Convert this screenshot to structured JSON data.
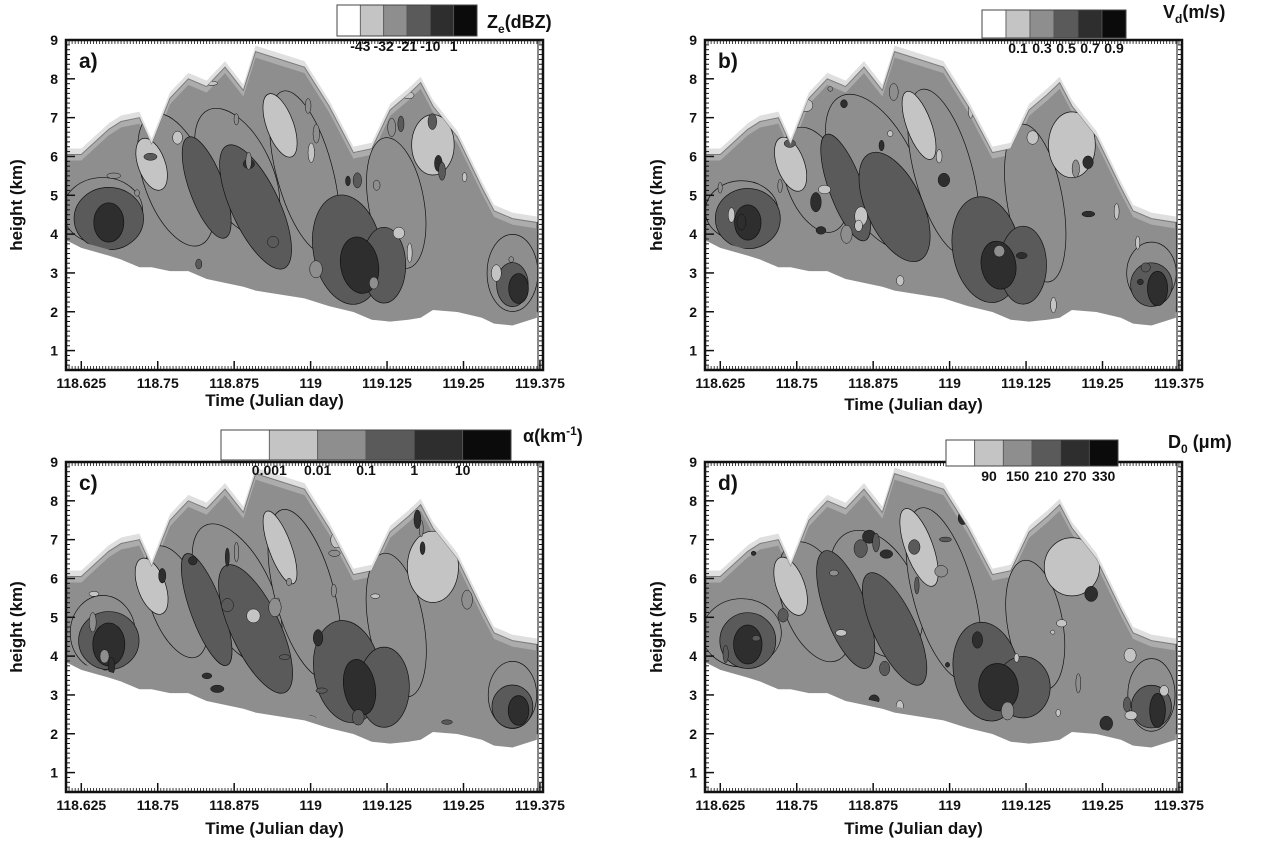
{
  "chart_data": [
    {
      "type": "heatmap",
      "panel_label": "a)",
      "xlabel": "Time (Julian day)",
      "ylabel": "height (km)",
      "xlim": [
        118.6,
        119.38
      ],
      "ylim": [
        0.5,
        9
      ],
      "xticks": [
        118.625,
        118.75,
        118.875,
        119,
        119.125,
        119.25,
        119.375
      ],
      "xtick_labels": [
        "118.625",
        "118.75",
        "118.875",
        "119",
        "119.125",
        "119.25",
        "119.375"
      ],
      "yticks": [
        1,
        2,
        3,
        4,
        5,
        6,
        7,
        8,
        9
      ],
      "colorbar": {
        "title_main": "Z",
        "title_sub": "e",
        "title_rest": "(dBZ)",
        "levels": [
          -43,
          -32,
          -21,
          -10,
          1
        ],
        "level_labels": [
          "-43",
          "-32",
          "-21",
          "-10",
          "1"
        ],
        "label_style": "boundary",
        "colors": [
          "#ffffff",
          "#c4c4c4",
          "#8e8e8e",
          "#5a5a5a",
          "#2e2e2e",
          "#0b0b0b"
        ]
      },
      "echo_envelope": {
        "x": [
          118.6,
          118.625,
          118.67,
          118.69,
          118.72,
          118.74,
          118.77,
          118.8,
          118.83,
          118.86,
          118.89,
          118.91,
          118.95,
          118.99,
          119.03,
          119.07,
          119.1,
          119.13,
          119.16,
          119.18,
          119.2,
          119.24,
          119.28,
          119.3,
          119.33,
          119.37
        ],
        "top": [
          6.05,
          6.05,
          6.7,
          6.9,
          7.0,
          6.3,
          7.5,
          8.0,
          7.8,
          8.3,
          7.7,
          8.7,
          8.5,
          8.3,
          7.3,
          6.1,
          6.2,
          7.2,
          7.6,
          7.9,
          7.3,
          6.5,
          5.2,
          4.6,
          4.4,
          4.3
        ],
        "bottom": [
          4.0,
          3.8,
          3.6,
          3.5,
          3.3,
          3.3,
          3.2,
          3.2,
          3.0,
          2.9,
          2.8,
          2.7,
          2.6,
          2.5,
          2.3,
          2.15,
          1.95,
          1.9,
          1.95,
          2.0,
          2.2,
          2.15,
          2.0,
          1.85,
          1.8,
          2.0
        ]
      }
    },
    {
      "type": "heatmap",
      "panel_label": "b)",
      "xlabel": "Time (Julian day)",
      "ylabel": "height (km)",
      "xlim": [
        118.6,
        119.38
      ],
      "ylim": [
        0.5,
        9
      ],
      "xticks": [
        118.625,
        118.75,
        118.875,
        119,
        119.125,
        119.25,
        119.375
      ],
      "xtick_labels": [
        "118.625",
        "118.75",
        "118.875",
        "119",
        "119.125",
        "119.25",
        "119.375"
      ],
      "yticks": [
        1,
        2,
        3,
        4,
        5,
        6,
        7,
        8,
        9
      ],
      "colorbar": {
        "title_main": "V",
        "title_sub": "d",
        "title_rest": "(m/s)",
        "levels": [
          0.1,
          0.3,
          0.5,
          0.7,
          0.9
        ],
        "level_labels": [
          "0.1",
          "0.3",
          "0.5",
          "0.7",
          "0.9"
        ],
        "label_style": "center",
        "colors": [
          "#ffffff",
          "#c4c4c4",
          "#8e8e8e",
          "#5a5a5a",
          "#2e2e2e",
          "#0b0b0b"
        ]
      },
      "echo_envelope": {
        "x": [
          118.6,
          118.625,
          118.67,
          118.69,
          118.72,
          118.74,
          118.77,
          118.8,
          118.83,
          118.86,
          118.89,
          118.91,
          118.95,
          118.99,
          119.03,
          119.07,
          119.1,
          119.13,
          119.16,
          119.18,
          119.2,
          119.24,
          119.28,
          119.3,
          119.33,
          119.37
        ],
        "top": [
          6.05,
          6.05,
          6.7,
          6.9,
          7.0,
          6.3,
          7.5,
          8.0,
          7.8,
          8.3,
          7.7,
          8.7,
          8.5,
          8.3,
          7.3,
          6.1,
          6.2,
          7.2,
          7.6,
          7.9,
          7.3,
          6.5,
          5.2,
          4.6,
          4.4,
          4.3
        ],
        "bottom": [
          4.0,
          3.8,
          3.6,
          3.5,
          3.3,
          3.3,
          3.2,
          3.2,
          3.0,
          2.9,
          2.8,
          2.7,
          2.6,
          2.5,
          2.3,
          2.15,
          1.95,
          1.9,
          1.95,
          2.0,
          2.2,
          2.15,
          2.0,
          1.85,
          1.8,
          2.0
        ]
      }
    },
    {
      "type": "heatmap",
      "panel_label": "c)",
      "xlabel": "Time (Julian day)",
      "ylabel": "height (km)",
      "xlim": [
        118.6,
        119.38
      ],
      "ylim": [
        0.5,
        9
      ],
      "xticks": [
        118.625,
        118.75,
        118.875,
        119,
        119.125,
        119.25,
        119.375
      ],
      "xtick_labels": [
        "118.625",
        "118.75",
        "118.875",
        "119",
        "119.125",
        "119.25",
        "119.375"
      ],
      "yticks": [
        1,
        2,
        3,
        4,
        5,
        6,
        7,
        8,
        9
      ],
      "colorbar": {
        "title_main": "α(km",
        "title_sup": "-1",
        "title_rest": ")",
        "levels": [
          0.001,
          0.01,
          0.1,
          1,
          10
        ],
        "level_labels": [
          "0.001",
          "0.01",
          "0.1",
          "1",
          "10"
        ],
        "label_style": "boundary",
        "colors": [
          "#ffffff",
          "#c4c4c4",
          "#8e8e8e",
          "#5a5a5a",
          "#2e2e2e",
          "#0b0b0b"
        ]
      },
      "echo_envelope": {
        "x": [
          118.6,
          118.625,
          118.67,
          118.69,
          118.72,
          118.74,
          118.77,
          118.8,
          118.83,
          118.86,
          118.89,
          118.91,
          118.95,
          118.99,
          119.03,
          119.07,
          119.1,
          119.13,
          119.16,
          119.18,
          119.2,
          119.24,
          119.28,
          119.3,
          119.33,
          119.37
        ],
        "top": [
          6.05,
          6.05,
          6.7,
          6.9,
          7.0,
          6.3,
          7.5,
          8.0,
          7.8,
          8.3,
          7.7,
          8.7,
          8.5,
          8.3,
          7.3,
          6.1,
          6.2,
          7.2,
          7.6,
          7.9,
          7.3,
          6.5,
          5.2,
          4.6,
          4.4,
          4.3
        ],
        "bottom": [
          4.0,
          3.8,
          3.6,
          3.5,
          3.3,
          3.3,
          3.2,
          3.2,
          3.0,
          2.9,
          2.8,
          2.7,
          2.6,
          2.5,
          2.3,
          2.15,
          1.95,
          1.9,
          1.95,
          2.0,
          2.2,
          2.15,
          2.0,
          1.85,
          1.8,
          2.0
        ]
      }
    },
    {
      "type": "heatmap",
      "panel_label": "d)",
      "xlabel": "Time (Julian day)",
      "ylabel": "height (km)",
      "xlim": [
        118.6,
        119.38
      ],
      "ylim": [
        0.5,
        9
      ],
      "xticks": [
        118.625,
        118.75,
        118.875,
        119,
        119.125,
        119.25,
        119.375
      ],
      "xtick_labels": [
        "118.625",
        "118.75",
        "118.875",
        "119",
        "119.125",
        "119.25",
        "119.375"
      ],
      "yticks": [
        1,
        2,
        3,
        4,
        5,
        6,
        7,
        8,
        9
      ],
      "colorbar": {
        "title_main": "D",
        "title_sub": "0",
        "title_rest": " (μm)",
        "levels": [
          90,
          150,
          210,
          270,
          330
        ],
        "level_labels": [
          "90",
          "150",
          "210",
          "270",
          "330"
        ],
        "label_style": "center",
        "colors": [
          "#ffffff",
          "#c4c4c4",
          "#8e8e8e",
          "#5a5a5a",
          "#2e2e2e",
          "#0b0b0b"
        ]
      },
      "echo_envelope": {
        "x": [
          118.6,
          118.625,
          118.67,
          118.69,
          118.72,
          118.74,
          118.77,
          118.8,
          118.83,
          118.86,
          118.89,
          118.91,
          118.95,
          118.99,
          119.03,
          119.07,
          119.1,
          119.13,
          119.16,
          119.18,
          119.2,
          119.24,
          119.28,
          119.3,
          119.33,
          119.37
        ],
        "top": [
          6.05,
          6.05,
          6.7,
          6.9,
          7.0,
          6.3,
          7.5,
          8.0,
          7.8,
          8.3,
          7.7,
          8.7,
          8.5,
          8.3,
          7.3,
          6.1,
          6.2,
          7.2,
          7.6,
          7.9,
          7.3,
          6.5,
          5.2,
          4.6,
          4.4,
          4.3
        ],
        "bottom": [
          4.0,
          3.8,
          3.6,
          3.5,
          3.3,
          3.3,
          3.2,
          3.2,
          3.0,
          2.9,
          2.8,
          2.7,
          2.6,
          2.5,
          2.3,
          2.15,
          1.95,
          1.9,
          1.95,
          2.0,
          2.2,
          2.15,
          2.0,
          1.85,
          1.8,
          2.0
        ]
      }
    }
  ]
}
